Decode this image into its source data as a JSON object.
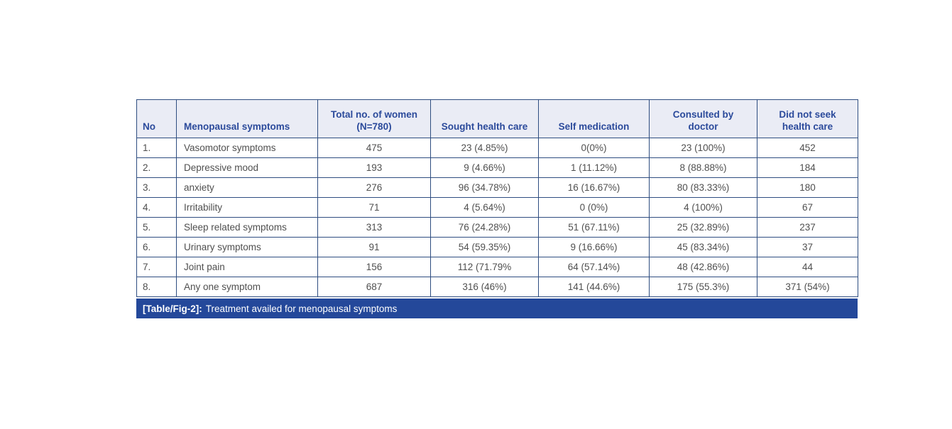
{
  "table": {
    "columns": [
      "No",
      "Menopausal symptoms",
      "Total no. of women\n(N=780)",
      "Sought health care",
      "Self medication",
      "Consulted by\ndoctor",
      "Did not seek\nhealth care"
    ],
    "rows": [
      [
        "1.",
        "Vasomotor symptoms",
        "475",
        "23 (4.85%)",
        "0(0%)",
        "23 (100%)",
        "452"
      ],
      [
        "2.",
        "Depressive mood",
        "193",
        "9 (4.66%)",
        "1 (11.12%)",
        "8 (88.88%)",
        "184"
      ],
      [
        "3.",
        "anxiety",
        "276",
        "96 (34.78%)",
        "16 (16.67%)",
        "80 (83.33%)",
        "180"
      ],
      [
        "4.",
        "Irritability",
        "71",
        "4 (5.64%)",
        "0 (0%)",
        "4 (100%)",
        "67"
      ],
      [
        "5.",
        "Sleep related symptoms",
        "313",
        "76 (24.28%)",
        "51 (67.11%)",
        "25 (32.89%)",
        "237"
      ],
      [
        "6.",
        "Urinary symptoms",
        "91",
        "54 (59.35%)",
        "9 (16.66%)",
        "45 (83.34%)",
        "37"
      ],
      [
        "7.",
        "Joint pain",
        "156",
        "112 (71.79%",
        "64 (57.14%)",
        "48 (42.86%)",
        "44"
      ],
      [
        "8.",
        "Any one symptom",
        "687",
        "316 (46%)",
        "141 (44.6%)",
        "175 (55.3%)",
        "371 (54%)"
      ]
    ],
    "caption": {
      "label": "[Table/Fig-2]:",
      "text": "Treatment availed for menopausal symptoms"
    },
    "colors": {
      "header_bg": "#eaecf5",
      "header_text": "#2b4a9b",
      "border": "#2e4d80",
      "body_text": "#4f4f4f",
      "caption_bg": "#24489a",
      "caption_text": "#ffffff"
    }
  }
}
